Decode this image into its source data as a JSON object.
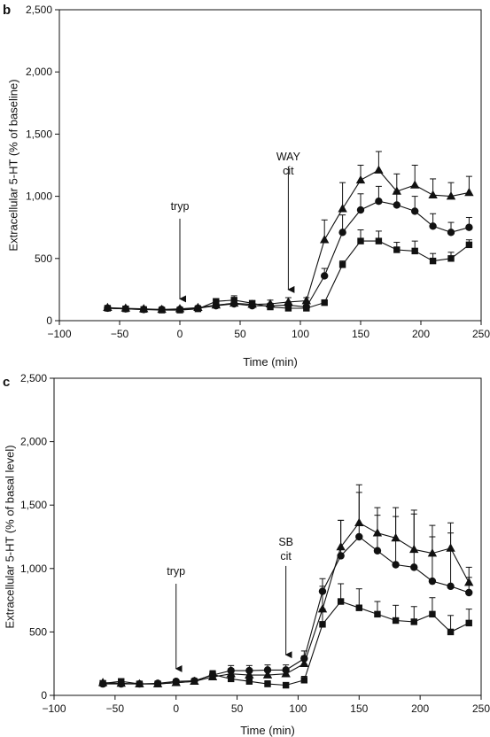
{
  "chart_data": [
    {
      "panel_label": "b",
      "type": "scatter",
      "xlabel": "Time (min)",
      "ylabel": "Extracellular 5-HT (% of baseline)",
      "xlim": [
        -100,
        250
      ],
      "ylim": [
        0,
        2500
      ],
      "x_ticks": [
        "−100",
        "−50",
        "0",
        "50",
        "100",
        "150",
        "200",
        "250"
      ],
      "x_tick_values": [
        -100,
        -50,
        0,
        50,
        100,
        150,
        200,
        250
      ],
      "y_ticks": [
        "0",
        "500",
        "1,000",
        "1,500",
        "2,000",
        "2,500"
      ],
      "y_tick_values": [
        0,
        500,
        1000,
        1500,
        2000,
        2500
      ],
      "annotations": [
        {
          "text": "tryp",
          "x": 0,
          "arrow_from": 820,
          "arrow_to": 175,
          "label_y": 890
        },
        {
          "text": "WAY",
          "x": 90,
          "arrow_from": 1240,
          "arrow_to": 250,
          "label_y": 1290,
          "line2": "cit"
        }
      ],
      "series": [
        {
          "marker": "triangle",
          "x": [
            -60,
            -45,
            -30,
            -15,
            0,
            15,
            30,
            45,
            60,
            75,
            90,
            105,
            120,
            135,
            150,
            165,
            180,
            195,
            210,
            225,
            240
          ],
          "y": [
            105,
            100,
            95,
            90,
            95,
            105,
            125,
            140,
            130,
            135,
            150,
            160,
            650,
            900,
            1130,
            1210,
            1040,
            1090,
            1010,
            1000,
            1030
          ],
          "error": [
            15,
            10,
            10,
            10,
            10,
            15,
            20,
            35,
            25,
            30,
            35,
            25,
            160,
            210,
            120,
            150,
            140,
            160,
            130,
            110,
            130
          ]
        },
        {
          "marker": "circle",
          "x": [
            -60,
            -45,
            -30,
            -15,
            0,
            15,
            30,
            45,
            60,
            75,
            90,
            105,
            120,
            135,
            150,
            165,
            180,
            195,
            210,
            225,
            240
          ],
          "y": [
            100,
            95,
            90,
            90,
            90,
            100,
            120,
            135,
            120,
            120,
            125,
            110,
            360,
            710,
            890,
            960,
            930,
            880,
            760,
            710,
            750
          ],
          "error": [
            10,
            10,
            10,
            10,
            10,
            10,
            20,
            25,
            20,
            20,
            25,
            15,
            60,
            140,
            130,
            120,
            110,
            120,
            100,
            80,
            80
          ]
        },
        {
          "marker": "square",
          "x": [
            -60,
            -45,
            -30,
            -15,
            0,
            15,
            30,
            45,
            60,
            75,
            90,
            105,
            120,
            135,
            150,
            165,
            180,
            195,
            210,
            225,
            240
          ],
          "y": [
            100,
            95,
            90,
            85,
            85,
            95,
            155,
            165,
            140,
            110,
            100,
            100,
            145,
            450,
            640,
            640,
            570,
            560,
            480,
            500,
            610
          ],
          "error": [
            10,
            10,
            10,
            10,
            10,
            10,
            20,
            35,
            20,
            15,
            15,
            15,
            20,
            30,
            90,
            80,
            60,
            80,
            60,
            50,
            40
          ]
        }
      ]
    },
    {
      "panel_label": "c",
      "type": "scatter",
      "xlabel": "Time (min)",
      "ylabel": "Extracellular 5-HT (% of basal level)",
      "xlim": [
        -100,
        250
      ],
      "ylim": [
        0,
        2500
      ],
      "x_ticks": [
        "−100",
        "−50",
        "0",
        "50",
        "100",
        "150",
        "200",
        "250"
      ],
      "x_tick_values": [
        -100,
        -50,
        0,
        50,
        100,
        150,
        200,
        250
      ],
      "y_ticks": [
        "0",
        "500",
        "1,000",
        "1,500",
        "2,000",
        "2,500"
      ],
      "y_tick_values": [
        0,
        500,
        1000,
        1500,
        2000,
        2500
      ],
      "annotations": [
        {
          "text": "tryp",
          "x": 0,
          "arrow_from": 880,
          "arrow_to": 210,
          "label_y": 950
        },
        {
          "text": "SB",
          "x": 90,
          "arrow_from": 1020,
          "arrow_to": 320,
          "label_y": 1180,
          "line2": "cit"
        }
      ],
      "series": [
        {
          "marker": "triangle",
          "x": [
            -60,
            -45,
            -30,
            -15,
            0,
            15,
            30,
            45,
            60,
            75,
            90,
            105,
            120,
            135,
            150,
            165,
            180,
            195,
            210,
            225,
            240
          ],
          "y": [
            100,
            95,
            90,
            90,
            100,
            110,
            145,
            170,
            160,
            160,
            170,
            250,
            680,
            1170,
            1360,
            1280,
            1240,
            1150,
            1120,
            1160,
            890
          ],
          "error": [
            15,
            10,
            10,
            10,
            15,
            20,
            30,
            40,
            40,
            40,
            40,
            60,
            180,
            210,
            300,
            200,
            240,
            280,
            220,
            200,
            120
          ]
        },
        {
          "marker": "circle",
          "x": [
            -60,
            -45,
            -30,
            -15,
            0,
            15,
            30,
            45,
            60,
            75,
            90,
            105,
            120,
            135,
            150,
            165,
            180,
            195,
            210,
            225,
            240
          ],
          "y": [
            90,
            90,
            90,
            95,
            110,
            115,
            160,
            195,
            195,
            200,
            200,
            290,
            820,
            1100,
            1250,
            1140,
            1030,
            1010,
            900,
            860,
            810
          ],
          "error": [
            10,
            10,
            10,
            10,
            15,
            15,
            30,
            40,
            40,
            40,
            40,
            60,
            100,
            280,
            350,
            280,
            380,
            450,
            350,
            420,
            120
          ]
        },
        {
          "marker": "square",
          "x": [
            -60,
            -45,
            -30,
            -15,
            0,
            15,
            30,
            45,
            60,
            75,
            90,
            105,
            120,
            135,
            150,
            165,
            180,
            195,
            210,
            225,
            240
          ],
          "y": [
            95,
            110,
            90,
            90,
            100,
            110,
            165,
            130,
            110,
            90,
            80,
            120,
            560,
            740,
            690,
            640,
            590,
            580,
            640,
            500,
            570
          ],
          "error": [
            10,
            15,
            10,
            10,
            10,
            15,
            30,
            50,
            35,
            25,
            20,
            30,
            120,
            140,
            150,
            100,
            120,
            120,
            130,
            130,
            110
          ]
        }
      ]
    }
  ]
}
